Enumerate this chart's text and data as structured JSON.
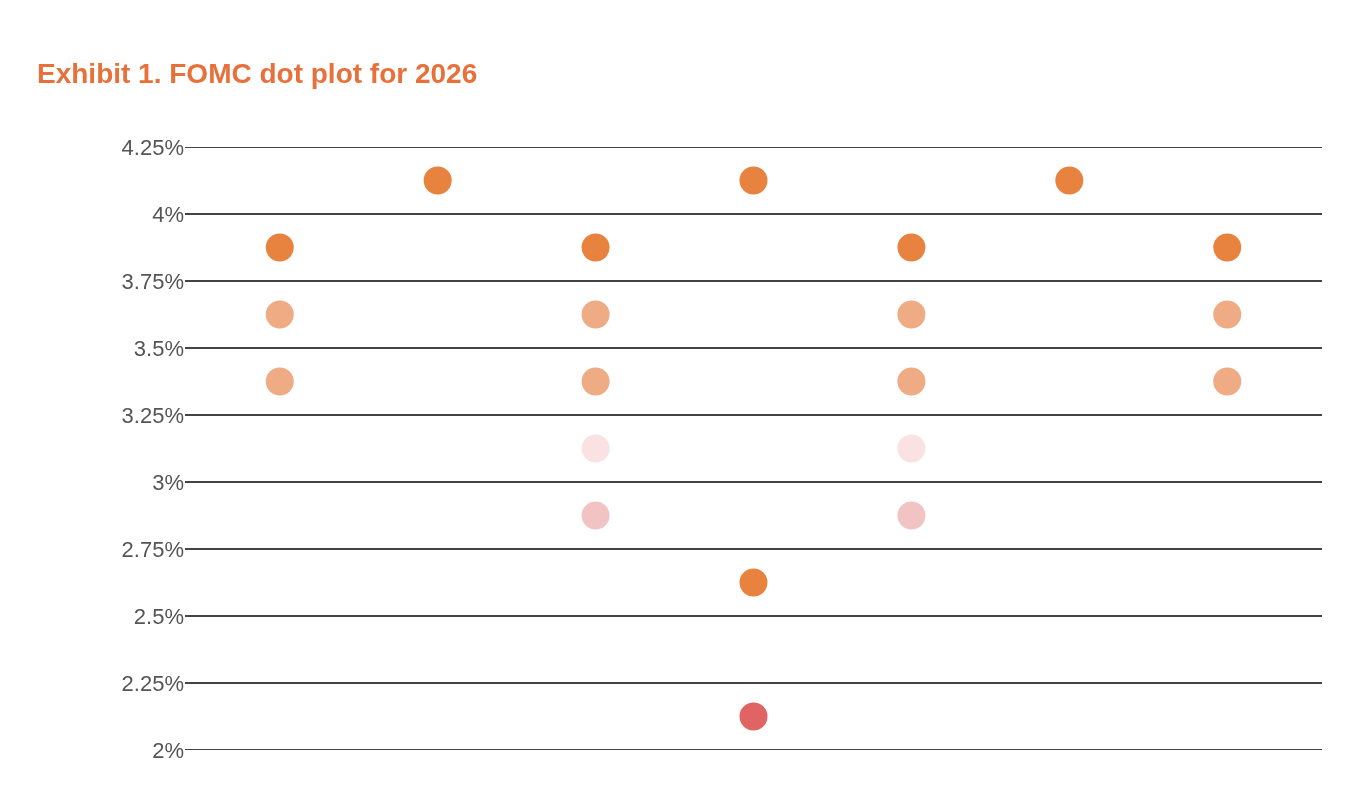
{
  "chart_data": {
    "type": "scatter",
    "title": "Exhibit 1. FOMC dot plot for 2026",
    "categories": [
      null,
      null,
      null,
      null,
      null,
      null,
      null
    ],
    "series": [
      {
        "color": "#e8823f",
        "values": [
          null,
          4.125,
          null,
          4.125,
          null,
          4.125,
          null
        ]
      },
      {
        "color": "#e8823f",
        "values": [
          3.875,
          null,
          3.875,
          null,
          3.875,
          null,
          3.875
        ]
      },
      {
        "color": "#eeab84",
        "values": [
          3.625,
          null,
          3.625,
          null,
          3.625,
          null,
          3.625
        ]
      },
      {
        "color": "#eeab84",
        "values": [
          3.375,
          null,
          3.375,
          null,
          3.375,
          null,
          3.375
        ]
      },
      {
        "color": "#fbe2e2",
        "values": [
          null,
          null,
          3.125,
          null,
          3.125,
          null,
          null
        ]
      },
      {
        "color": "#f2c3c3",
        "values": [
          null,
          null,
          2.875,
          null,
          2.875,
          null,
          null
        ]
      },
      {
        "color": "#e8823f",
        "values": [
          null,
          null,
          null,
          2.625,
          null,
          null,
          null
        ]
      },
      {
        "color": "#e06464",
        "values": [
          null,
          null,
          null,
          2.125,
          null,
          null,
          null
        ]
      }
    ],
    "ylim": [
      2,
      4.25
    ],
    "yticks": [
      {
        "value": 2,
        "label": "2%"
      },
      {
        "value": 2.25,
        "label": "2.25%"
      },
      {
        "value": 2.5,
        "label": "2.5%"
      },
      {
        "value": 2.75,
        "label": "2.75%"
      },
      {
        "value": 3,
        "label": "3%"
      },
      {
        "value": 3.25,
        "label": "3.25%"
      },
      {
        "value": 3.5,
        "label": "3.5%"
      },
      {
        "value": 3.75,
        "label": "3.75%"
      },
      {
        "value": 4,
        "label": "4%"
      },
      {
        "value": 4.25,
        "label": "4.25%"
      }
    ],
    "grid": "y",
    "marker": "circle",
    "tick_labels": "y"
  }
}
